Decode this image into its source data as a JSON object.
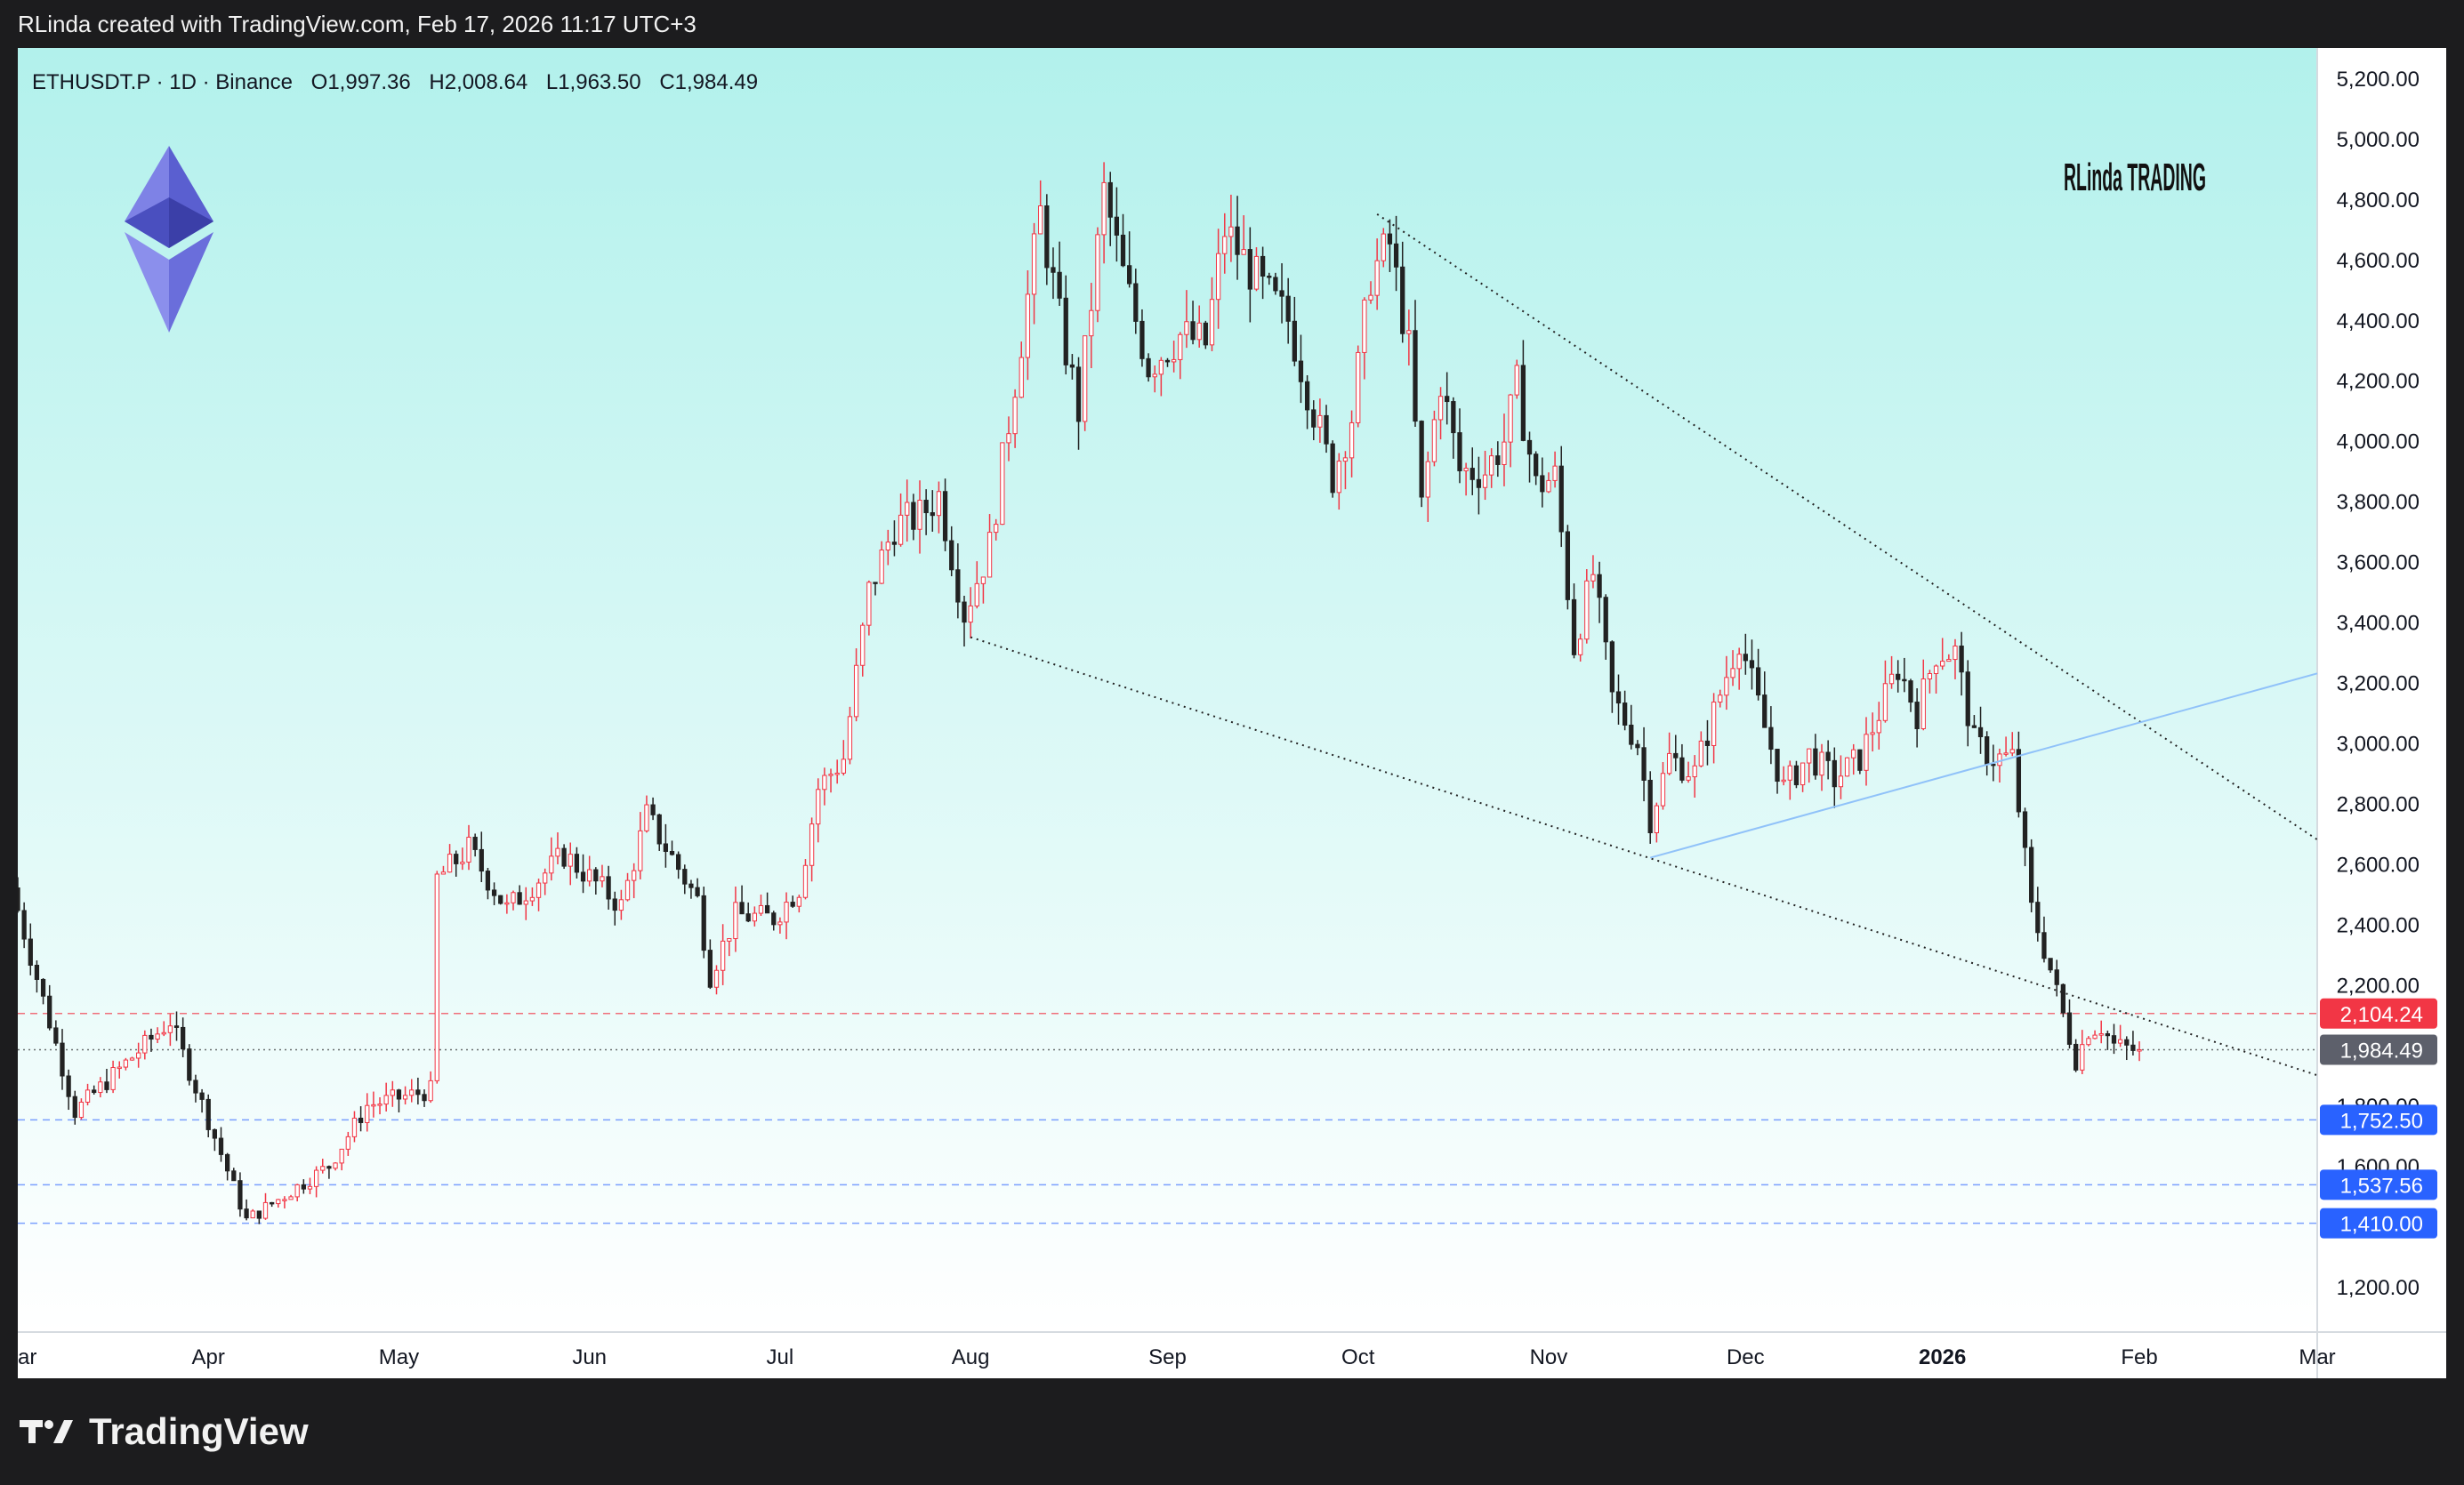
{
  "header": {
    "attribution": "RLinda created with TradingView.com, Feb 17, 2026 11:17 UTC+3"
  },
  "footer": {
    "brand": "TradingView",
    "brand_icon": "tradingview-logo-icon"
  },
  "chart_data": {
    "type": "candlestick",
    "symbol_line": {
      "symbol": "ETHUSDT.P · 1D · Binance",
      "open": "O1,997.36",
      "high": "H2,008.64",
      "low": "L1,963.50",
      "close": "C1,984.49"
    },
    "watermark": "RLinda TRADING",
    "logo_icon": "ethereum-logo-icon",
    "y_axis": {
      "range": [
        1050,
        5300
      ],
      "ticks": [
        "5,200.00",
        "5,000.00",
        "4,800.00",
        "4,600.00",
        "4,400.00",
        "4,200.00",
        "4,000.00",
        "3,800.00",
        "3,600.00",
        "3,400.00",
        "3,200.00",
        "3,000.00",
        "2,800.00",
        "2,600.00",
        "2,400.00",
        "2,200.00",
        "1,800.00",
        "1,600.00",
        "1,200.00"
      ],
      "tick_values": [
        5200,
        5000,
        4800,
        4600,
        4400,
        4200,
        4000,
        3800,
        3600,
        3400,
        3200,
        3000,
        2800,
        2600,
        2400,
        2200,
        1800,
        1600,
        1200
      ]
    },
    "x_axis": {
      "range_days": [
        0,
        362
      ],
      "labels": [
        "ar",
        "Apr",
        "May",
        "Jun",
        "Jul",
        "Aug",
        "Sep",
        "Oct",
        "Nov",
        "Dec",
        "2026",
        "Feb",
        "Mar"
      ],
      "label_days": [
        0,
        30,
        60,
        90,
        120,
        150,
        181,
        211,
        241,
        272,
        303,
        334,
        362
      ],
      "bold_label": "2026"
    },
    "price_labels": [
      {
        "value": 2104.24,
        "text": "2,104.24",
        "color": "#f23645",
        "line": "dashed"
      },
      {
        "value": 1984.49,
        "text": "1,984.49",
        "color": "#5d606b",
        "line": "dotted"
      },
      {
        "value": 1752.5,
        "text": "1,752.50",
        "color": "#2962ff",
        "line": "dashed"
      },
      {
        "value": 1537.56,
        "text": "1,537.56",
        "color": "#2962ff",
        "line": "dashed"
      },
      {
        "value": 1410.0,
        "text": "1,410.00",
        "color": "#2962ff",
        "line": "dashed"
      }
    ],
    "trendlines": [
      {
        "from": [
          214,
          4750
        ],
        "to": [
          362,
          2680
        ],
        "style": "dotted",
        "color": "#222222"
      },
      {
        "from": [
          150,
          3350
        ],
        "to": [
          362,
          1900
        ],
        "style": "dotted",
        "color": "#222222"
      },
      {
        "from": [
          257,
          2620
        ],
        "to": [
          362,
          3230
        ],
        "style": "solid",
        "color": "#90c2f9"
      }
    ],
    "key_points": [
      {
        "day": 0,
        "price": 2520
      },
      {
        "day": 10,
        "price": 1780
      },
      {
        "day": 25,
        "price": 2080
      },
      {
        "day": 37,
        "price": 1420
      },
      {
        "day": 50,
        "price": 1600
      },
      {
        "day": 56,
        "price": 1800
      },
      {
        "day": 66,
        "price": 1850
      },
      {
        "day": 67,
        "price": 2550
      },
      {
        "day": 72,
        "price": 2650
      },
      {
        "day": 78,
        "price": 2450
      },
      {
        "day": 87,
        "price": 2630
      },
      {
        "day": 96,
        "price": 2460
      },
      {
        "day": 100,
        "price": 2760
      },
      {
        "day": 108,
        "price": 2480
      },
      {
        "day": 110,
        "price": 2230
      },
      {
        "day": 114,
        "price": 2430
      },
      {
        "day": 120,
        "price": 2420
      },
      {
        "day": 124,
        "price": 2520
      },
      {
        "day": 127,
        "price": 2850
      },
      {
        "day": 131,
        "price": 2950
      },
      {
        "day": 135,
        "price": 3500
      },
      {
        "day": 139,
        "price": 3720
      },
      {
        "day": 143,
        "price": 3750
      },
      {
        "day": 146,
        "price": 3820
      },
      {
        "day": 150,
        "price": 3430
      },
      {
        "day": 154,
        "price": 3650
      },
      {
        "day": 158,
        "price": 4200
      },
      {
        "day": 162,
        "price": 4750
      },
      {
        "day": 165,
        "price": 4400
      },
      {
        "day": 168,
        "price": 4100
      },
      {
        "day": 172,
        "price": 4820
      },
      {
        "day": 175,
        "price": 4550
      },
      {
        "day": 179,
        "price": 4250
      },
      {
        "day": 184,
        "price": 4350
      },
      {
        "day": 188,
        "price": 4320
      },
      {
        "day": 191,
        "price": 4700
      },
      {
        "day": 197,
        "price": 4500
      },
      {
        "day": 201,
        "price": 4400
      },
      {
        "day": 205,
        "price": 4100
      },
      {
        "day": 208,
        "price": 3880
      },
      {
        "day": 211,
        "price": 4080
      },
      {
        "day": 214,
        "price": 4550
      },
      {
        "day": 217,
        "price": 4650
      },
      {
        "day": 220,
        "price": 4300
      },
      {
        "day": 222,
        "price": 3780
      },
      {
        "day": 225,
        "price": 4200
      },
      {
        "day": 228,
        "price": 3900
      },
      {
        "day": 232,
        "price": 3900
      },
      {
        "day": 235,
        "price": 4000
      },
      {
        "day": 237,
        "price": 4180
      },
      {
        "day": 240,
        "price": 3850
      },
      {
        "day": 243,
        "price": 3880
      },
      {
        "day": 246,
        "price": 3320
      },
      {
        "day": 249,
        "price": 3560
      },
      {
        "day": 252,
        "price": 3150
      },
      {
        "day": 256,
        "price": 3000
      },
      {
        "day": 258,
        "price": 2750
      },
      {
        "day": 261,
        "price": 2950
      },
      {
        "day": 265,
        "price": 2900
      },
      {
        "day": 268,
        "price": 3100
      },
      {
        "day": 272,
        "price": 3350
      },
      {
        "day": 276,
        "price": 3050
      },
      {
        "day": 279,
        "price": 2850
      },
      {
        "day": 283,
        "price": 2960
      },
      {
        "day": 287,
        "price": 2880
      },
      {
        "day": 291,
        "price": 2950
      },
      {
        "day": 294,
        "price": 3100
      },
      {
        "day": 297,
        "price": 3250
      },
      {
        "day": 300,
        "price": 3100
      },
      {
        "day": 303,
        "price": 3300
      },
      {
        "day": 306,
        "price": 3300
      },
      {
        "day": 309,
        "price": 3000
      },
      {
        "day": 312,
        "price": 2950
      },
      {
        "day": 315,
        "price": 2950
      },
      {
        "day": 318,
        "price": 2450
      },
      {
        "day": 321,
        "price": 2250
      },
      {
        "day": 323,
        "price": 2100
      },
      {
        "day": 325,
        "price": 1950
      },
      {
        "day": 327,
        "price": 2050
      },
      {
        "day": 329,
        "price": 2060
      },
      {
        "day": 331,
        "price": 2000
      },
      {
        "day": 334,
        "price": 1984
      }
    ],
    "colors": {
      "up": "#f23645",
      "down": "#222222",
      "bg_top": "#b2f1ec",
      "bg_bottom": "#ffffff"
    },
    "grid": false
  }
}
